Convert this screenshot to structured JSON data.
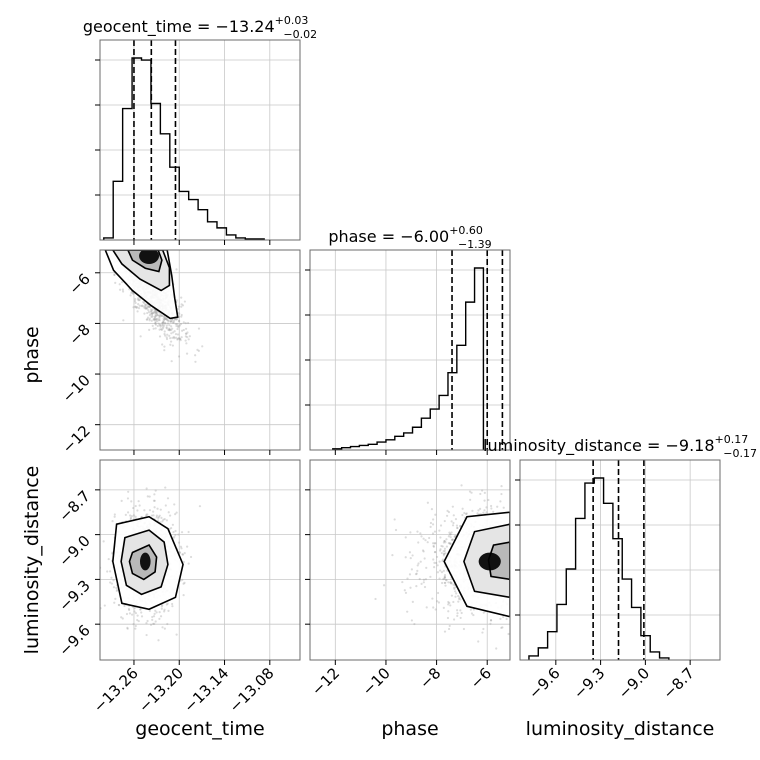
{
  "chart_data": {
    "type": "corner",
    "parameters": [
      {
        "name": "geocent_time",
        "axis_label": "geocent_time",
        "title": {
          "prefix": "geocent_time = ",
          "median": "−13.24",
          "upper": "+0.03",
          "lower": "−0.02"
        },
        "range": [
          -13.305,
          -13.04
        ],
        "ticks": [
          -13.26,
          -13.2,
          -13.14,
          -13.08
        ],
        "tick_labels": [
          "−13.26",
          "−13.20",
          "−13.14",
          "−13.08"
        ],
        "quantiles": [
          -13.26,
          -13.237,
          -13.205
        ],
        "hist": {
          "start": -13.3,
          "width": 0.0125,
          "counts": [
            2,
            58,
            130,
            180,
            178,
            135,
            105,
            72,
            48,
            40,
            30,
            18,
            12,
            5,
            2,
            1,
            1
          ]
        }
      },
      {
        "name": "phase",
        "axis_label": "phase",
        "title": {
          "prefix": "phase = ",
          "median": "−6.00",
          "upper": "+0.60",
          "lower": "−1.39"
        },
        "range": [
          -13.0,
          -5.1
        ],
        "ticks": [
          -12,
          -10,
          -8,
          -6
        ],
        "tick_labels": [
          "−12",
          "−10",
          "−8",
          "−6"
        ],
        "quantiles": [
          -7.39,
          -6.0,
          -5.4
        ],
        "hist": {
          "start": -12.1,
          "width": 0.35,
          "counts": [
            1,
            2,
            3,
            4,
            5,
            7,
            9,
            12,
            15,
            20,
            28,
            36,
            48,
            68,
            92,
            130,
            160
          ]
        }
      },
      {
        "name": "luminosity_distance",
        "axis_label": "luminosity_distance",
        "title": {
          "prefix": "luminosity_distance = ",
          "median": "−9.18",
          "upper": "+0.17",
          "lower": "−0.17"
        },
        "range": [
          -9.84,
          -8.5
        ],
        "ticks": [
          -9.6,
          -9.3,
          -9.0,
          -8.7
        ],
        "tick_labels": [
          "−9.6",
          "−9.3",
          "−9.0",
          "−8.7"
        ],
        "quantiles": [
          -9.35,
          -9.18,
          -9.01
        ],
        "hist": {
          "start": -9.78,
          "width": 0.0625,
          "counts": [
            4,
            12,
            28,
            55,
            90,
            140,
            175,
            180,
            155,
            120,
            80,
            52,
            24,
            8,
            2
          ]
        }
      }
    ],
    "pairs": [
      {
        "x": "geocent_time",
        "y": "phase",
        "mean": [
          -13.24,
          -6.6
        ],
        "sd": [
          0.022,
          1.0
        ],
        "corr": -0.8,
        "contours": [
          [
            [
              -13.268,
              -5.1
            ],
            [
              -13.262,
              -5.5
            ],
            [
              -13.245,
              -5.82
            ],
            [
              -13.227,
              -5.95
            ],
            [
              -13.223,
              -5.5
            ],
            [
              -13.228,
              -5.1
            ]
          ],
          [
            [
              -13.288,
              -5.1
            ],
            [
              -13.276,
              -5.65
            ],
            [
              -13.252,
              -6.25
            ],
            [
              -13.224,
              -6.7
            ],
            [
              -13.213,
              -6.5
            ],
            [
              -13.213,
              -5.8
            ],
            [
              -13.222,
              -5.1
            ]
          ],
          [
            [
              -13.298,
              -5.1
            ],
            [
              -13.287,
              -5.9
            ],
            [
              -13.262,
              -6.7
            ],
            [
              -13.237,
              -7.3
            ],
            [
              -13.212,
              -7.8
            ],
            [
              -13.202,
              -7.75
            ],
            [
              -13.206,
              -7.0
            ],
            [
              -13.21,
              -6.1
            ],
            [
              -13.216,
              -5.1
            ]
          ]
        ]
      },
      {
        "x": "geocent_time",
        "y": "luminosity_distance",
        "mean": [
          -13.245,
          -9.18
        ],
        "sd": [
          0.02,
          0.17
        ],
        "corr": 0.0,
        "contours": [
          [
            [
              -13.262,
              -9.12
            ],
            [
              -13.24,
              -9.07
            ],
            [
              -13.23,
              -9.15
            ],
            [
              -13.232,
              -9.25
            ],
            [
              -13.247,
              -9.3
            ],
            [
              -13.262,
              -9.26
            ],
            [
              -13.266,
              -9.18
            ]
          ],
          [
            [
              -13.272,
              -9.02
            ],
            [
              -13.24,
              -8.97
            ],
            [
              -13.22,
              -9.05
            ],
            [
              -13.215,
              -9.2
            ],
            [
              -13.224,
              -9.35
            ],
            [
              -13.25,
              -9.4
            ],
            [
              -13.27,
              -9.34
            ],
            [
              -13.277,
              -9.18
            ]
          ],
          [
            [
              -13.283,
              -8.93
            ],
            [
              -13.24,
              -8.88
            ],
            [
              -13.215,
              -8.96
            ],
            [
              -13.195,
              -9.2
            ],
            [
              -13.205,
              -9.42
            ],
            [
              -13.24,
              -9.5
            ],
            [
              -13.276,
              -9.46
            ],
            [
              -13.288,
              -9.18
            ]
          ]
        ]
      },
      {
        "x": "phase",
        "y": "luminosity_distance",
        "mean": [
          -5.9,
          -9.18
        ],
        "sd": [
          1.25,
          0.17
        ],
        "corr": 0.0,
        "contours": [
          [
            [
              -5.1,
              -9.05
            ],
            [
              -5.75,
              -9.07
            ],
            [
              -5.95,
              -9.17
            ],
            [
              -5.85,
              -9.28
            ],
            [
              -5.1,
              -9.3
            ]
          ],
          [
            [
              -5.1,
              -8.93
            ],
            [
              -6.5,
              -8.98
            ],
            [
              -6.92,
              -9.18
            ],
            [
              -6.5,
              -9.38
            ],
            [
              -5.1,
              -9.42
            ]
          ],
          [
            [
              -5.1,
              -8.85
            ],
            [
              -6.8,
              -8.88
            ],
            [
              -7.7,
              -9.18
            ],
            [
              -6.8,
              -9.48
            ],
            [
              -5.1,
              -9.55
            ]
          ]
        ]
      }
    ],
    "grid": true
  }
}
